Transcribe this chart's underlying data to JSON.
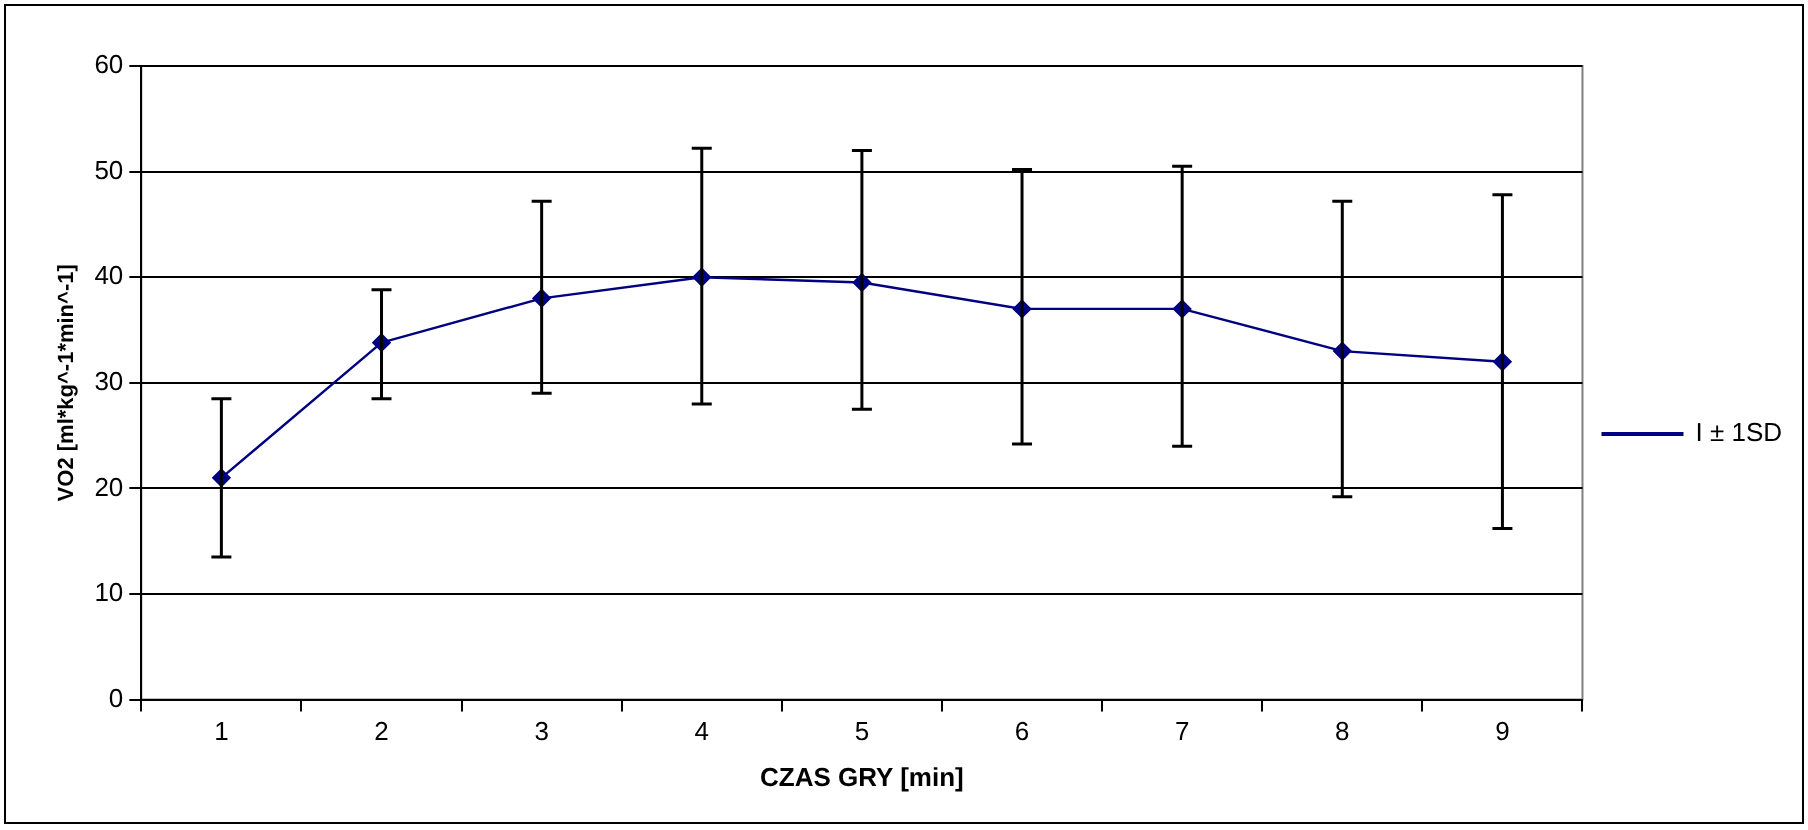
{
  "chart_data": {
    "type": "line",
    "xlabel": "CZAS GRY [min]",
    "ylabel": "VO2 [ml*kg^-1*min^-1]",
    "categories": [
      "1",
      "2",
      "3",
      "4",
      "5",
      "6",
      "7",
      "8",
      "9"
    ],
    "series": [
      {
        "name": "I ± 1SD",
        "color": "#000080",
        "values": [
          21,
          33.8,
          38,
          40,
          39.5,
          37,
          37,
          33,
          32
        ],
        "errors": [
          [
            13.5,
            28.5
          ],
          [
            28.5,
            38.8
          ],
          [
            29,
            47.2
          ],
          [
            28,
            52.2
          ],
          [
            27.5,
            52
          ],
          [
            24.2,
            50.2
          ],
          [
            24,
            50.5
          ],
          [
            19.2,
            47.2
          ],
          [
            16.2,
            47.8
          ]
        ]
      }
    ],
    "ylim": [
      0,
      60
    ],
    "yticks": [
      0,
      10,
      20,
      30,
      40,
      50,
      60
    ],
    "grid": "y",
    "legend": "right",
    "marker": "diamond",
    "line_style": "solid"
  }
}
